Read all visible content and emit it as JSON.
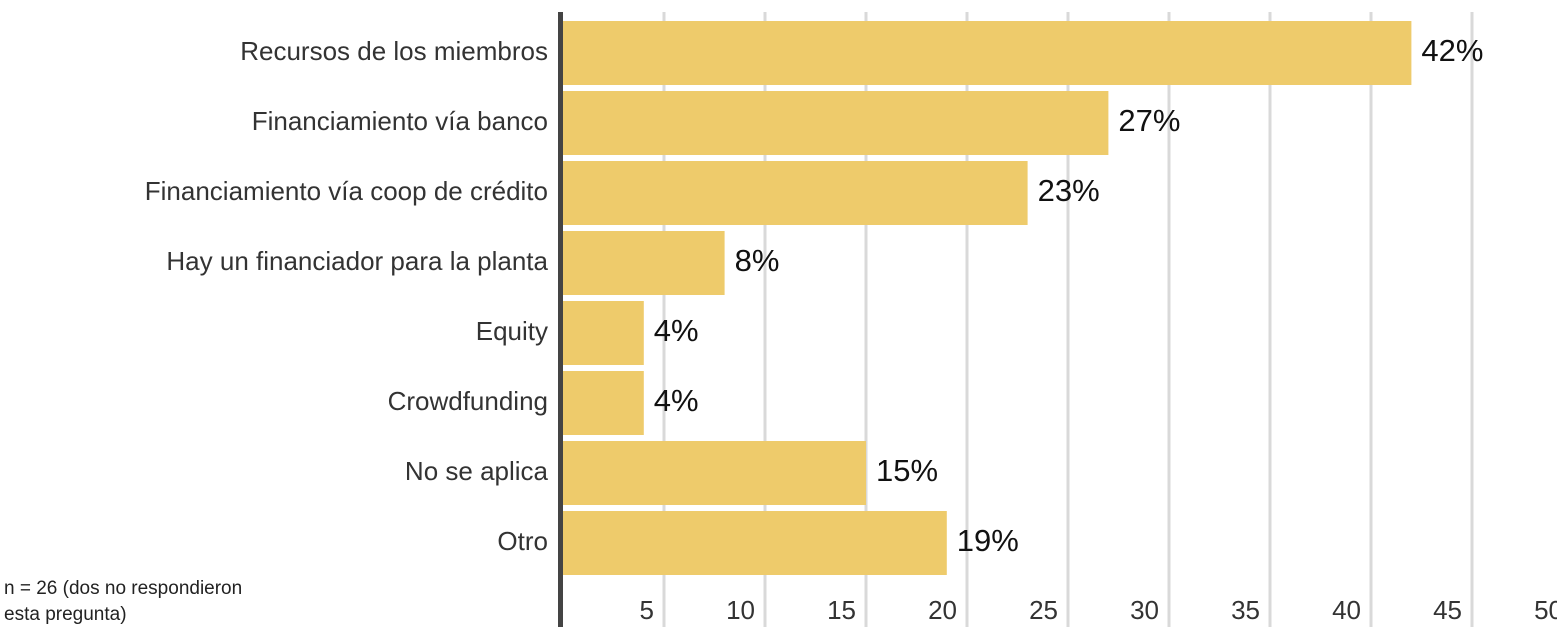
{
  "chart_data": {
    "type": "hbar",
    "categories": [
      "Recursos de los miembros",
      "Financiamiento vía banco",
      "Financiamiento vía coop de crédito",
      "Hay un financiador para la planta",
      "Equity",
      "Crowdfunding",
      "No se aplica",
      "Otro"
    ],
    "values": [
      42,
      27,
      23,
      8,
      4,
      4,
      15,
      19
    ],
    "value_labels": [
      "42%",
      "27%",
      "23%",
      "8%",
      "4%",
      "4%",
      "15%",
      "19%"
    ],
    "color": "#eecb6b",
    "xlim": [
      0,
      50
    ],
    "xticks": [
      5,
      10,
      15,
      20,
      25,
      30,
      35,
      40,
      45,
      50
    ],
    "grid": true,
    "note": [
      "n = 26 (dos no respondieron",
      "esta pregunta)"
    ]
  }
}
